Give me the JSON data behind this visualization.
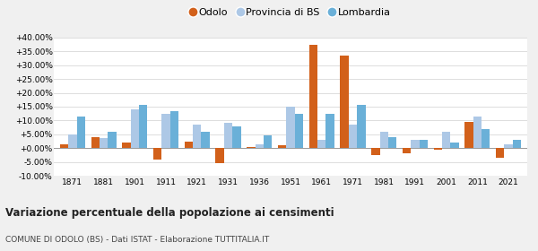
{
  "years": [
    1871,
    1881,
    1901,
    1911,
    1921,
    1931,
    1936,
    1951,
    1961,
    1971,
    1981,
    1991,
    2001,
    2011,
    2021
  ],
  "odolo": [
    1.5,
    4.0,
    2.0,
    -4.0,
    2.5,
    -5.5,
    0.5,
    1.0,
    37.5,
    33.5,
    -2.5,
    -2.0,
    -0.5,
    9.5,
    -3.5
  ],
  "provincia": [
    5.0,
    3.5,
    14.0,
    12.5,
    8.5,
    9.0,
    1.5,
    15.0,
    3.0,
    8.5,
    6.0,
    3.0,
    6.0,
    11.5,
    1.5
  ],
  "lombardia": [
    11.5,
    6.0,
    15.5,
    13.5,
    6.0,
    8.0,
    4.5,
    12.5,
    12.5,
    15.5,
    4.0,
    3.0,
    2.0,
    7.0,
    3.0
  ],
  "odolo_color": "#d2601a",
  "provincia_color": "#adc8e6",
  "lombardia_color": "#6ab0d8",
  "title": "Variazione percentuale della popolazione ai censimenti",
  "subtitle": "COMUNE DI ODOLO (BS) - Dati ISTAT - Elaborazione TUTTITALIA.IT",
  "ylim": [
    -10.0,
    40.0
  ],
  "yticks": [
    -10.0,
    -5.0,
    0.0,
    5.0,
    10.0,
    15.0,
    20.0,
    25.0,
    30.0,
    35.0,
    40.0
  ],
  "fig_bg": "#f0f0f0",
  "plot_bg": "#ffffff",
  "legend_labels": [
    "Odolo",
    "Provincia di BS",
    "Lombardia"
  ]
}
